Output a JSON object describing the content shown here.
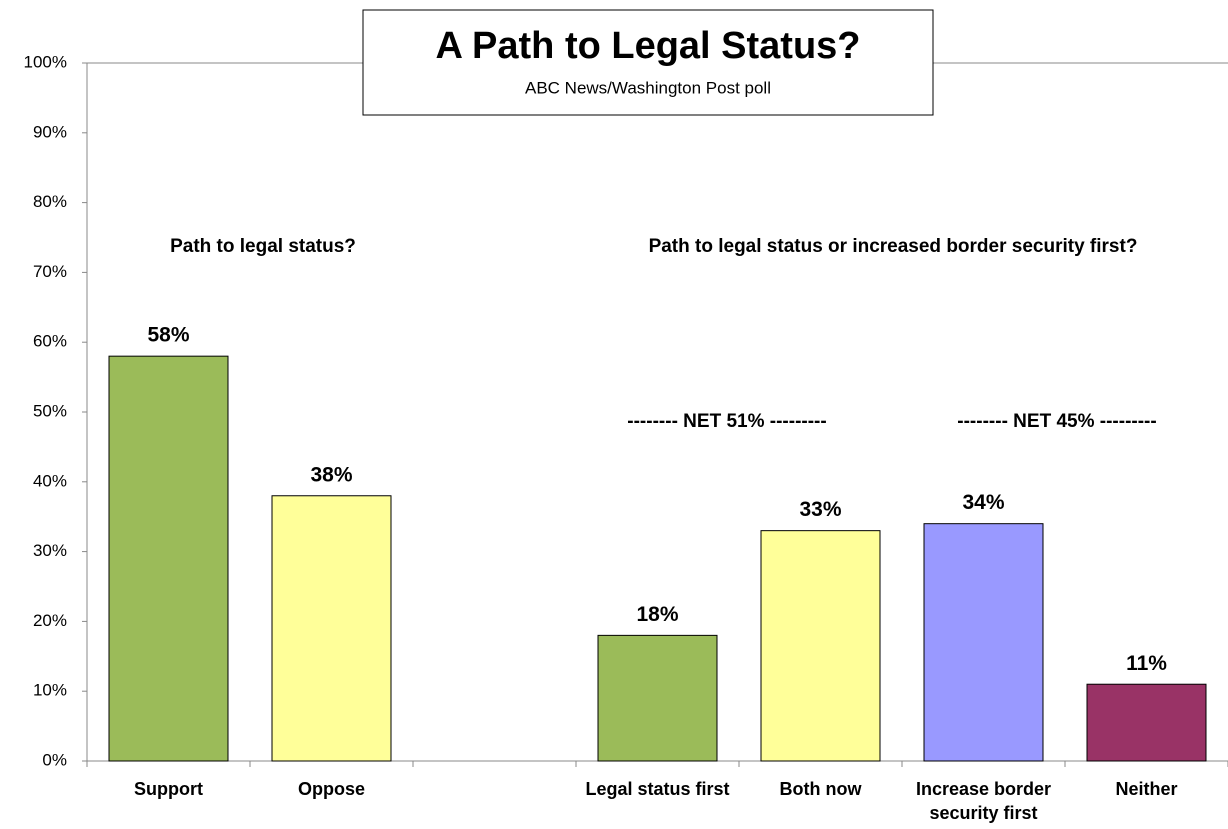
{
  "chart_data": {
    "type": "bar",
    "title": "A Path to Legal Status?",
    "subtitle": "ABC News/Washington Post poll",
    "annotations": [
      "Path to legal status?",
      "Path to legal status or increased border security first?",
      "-------- NET 51% ---------",
      "-------- NET 45% ---------"
    ],
    "categories": [
      "Support",
      "Oppose",
      null,
      "Legal status first",
      "Both now",
      "Increase border security first",
      "Neither"
    ],
    "values": [
      58,
      38,
      null,
      18,
      33,
      34,
      11
    ],
    "value_labels": [
      "58%",
      "38%",
      null,
      "18%",
      "33%",
      "34%",
      "11%"
    ],
    "colors": [
      "#9bbb59",
      "#ffff99",
      null,
      "#9bbb59",
      "#ffff99",
      "#9999ff",
      "#993366"
    ],
    "ylim": [
      0,
      100
    ],
    "yticks": [
      {
        "value": 0,
        "label": "0%"
      },
      {
        "value": 10,
        "label": "10%"
      },
      {
        "value": 20,
        "label": "20%"
      },
      {
        "value": 30,
        "label": "30%"
      },
      {
        "value": 40,
        "label": "40%"
      },
      {
        "value": 50,
        "label": "50%"
      },
      {
        "value": 60,
        "label": "60%"
      },
      {
        "value": 70,
        "label": "70%"
      },
      {
        "value": 80,
        "label": "80%"
      },
      {
        "value": 90,
        "label": "90%"
      },
      {
        "value": 100,
        "label": "100%"
      }
    ],
    "grid": false
  }
}
